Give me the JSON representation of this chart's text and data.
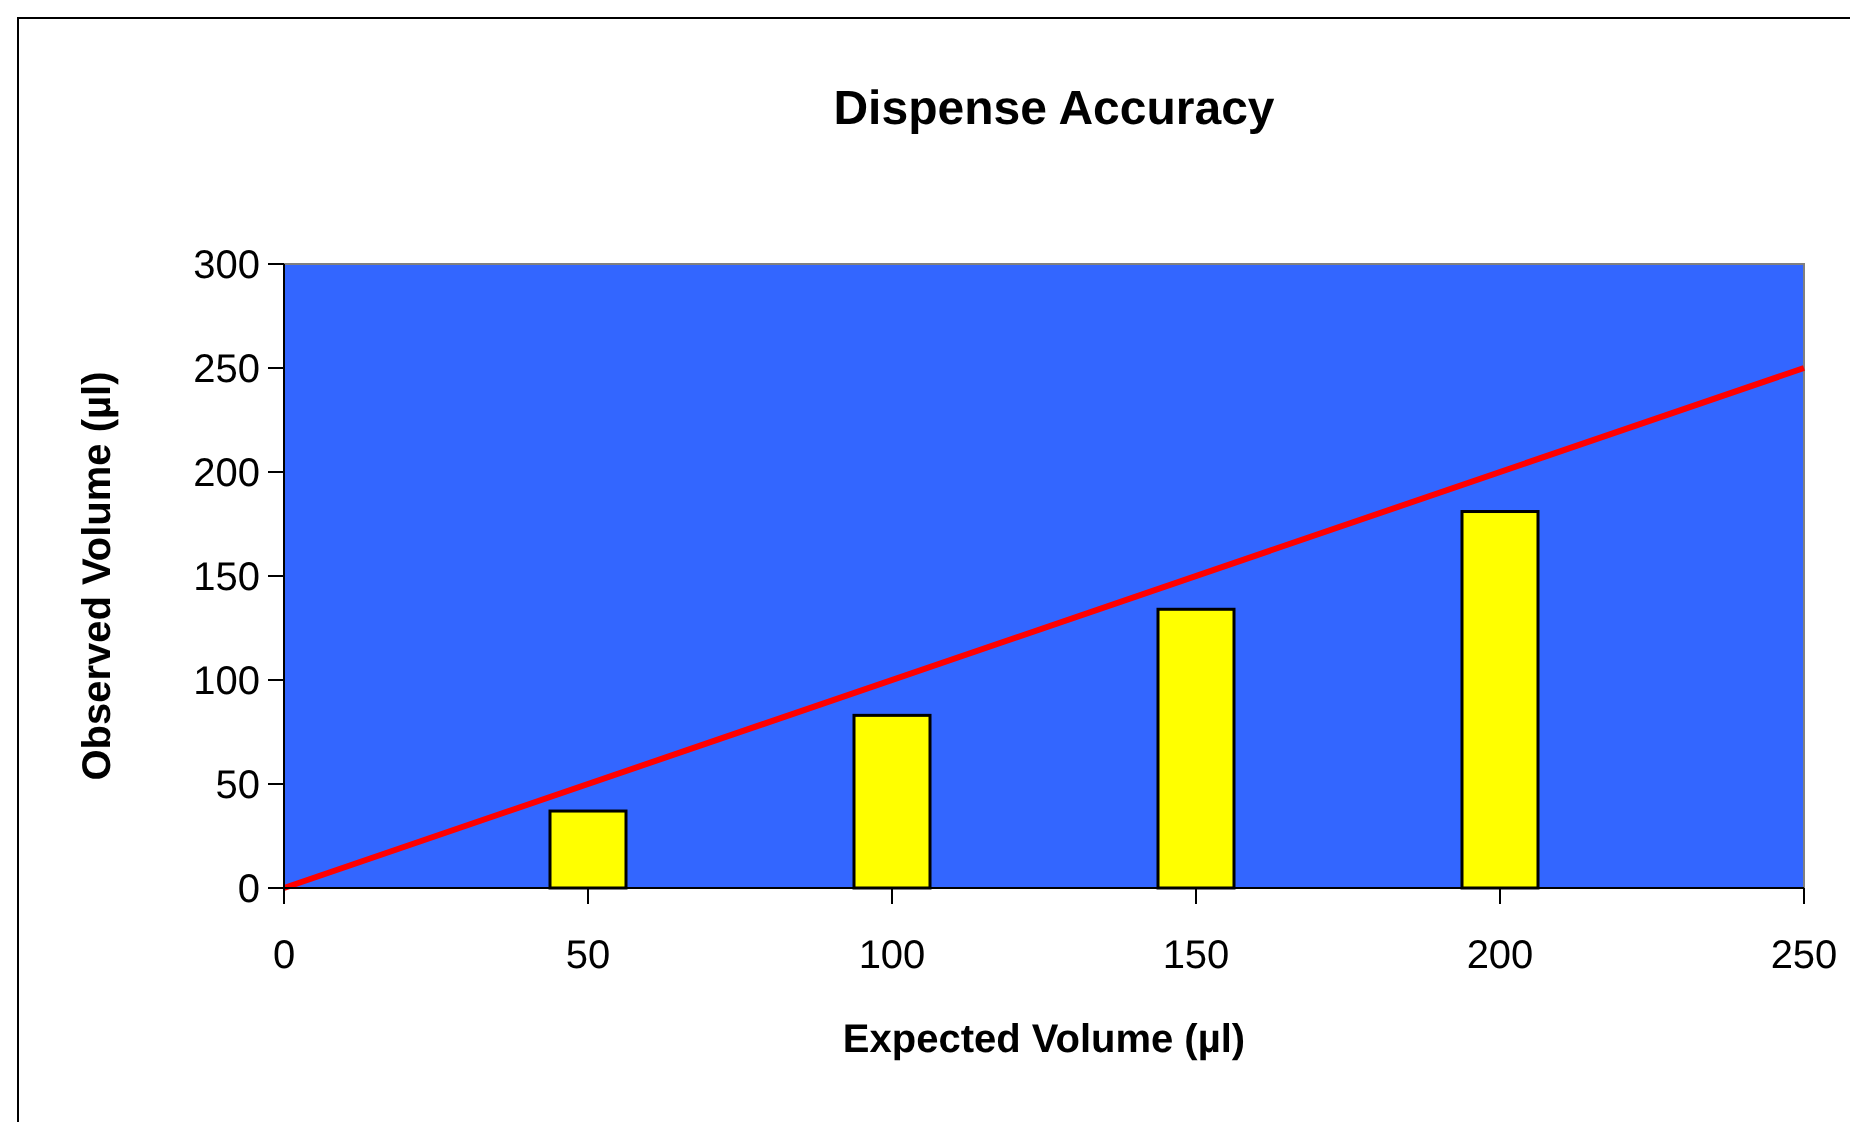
{
  "chart_data": {
    "type": "bar",
    "title": "Dispense Accuracy",
    "xlabel": "Expected Volume (µl)",
    "ylabel": "Observed Volume (µl)",
    "series": [
      {
        "x": [
          50,
          100,
          150,
          200
        ],
        "values": [
          37,
          83,
          134,
          181
        ],
        "color": "#ffff00"
      },
      {
        "type": "line",
        "x": [
          0,
          250
        ],
        "values": [
          0,
          250
        ],
        "color": "#ff0000"
      }
    ],
    "xlim": [
      0,
      250
    ],
    "xticks": [
      0,
      50,
      100,
      150,
      200,
      250
    ],
    "ylim": [
      0,
      300
    ],
    "yticks": [
      0,
      50,
      100,
      150,
      200,
      250,
      300
    ],
    "grid": false,
    "marker": "none",
    "line_style": "solid"
  }
}
